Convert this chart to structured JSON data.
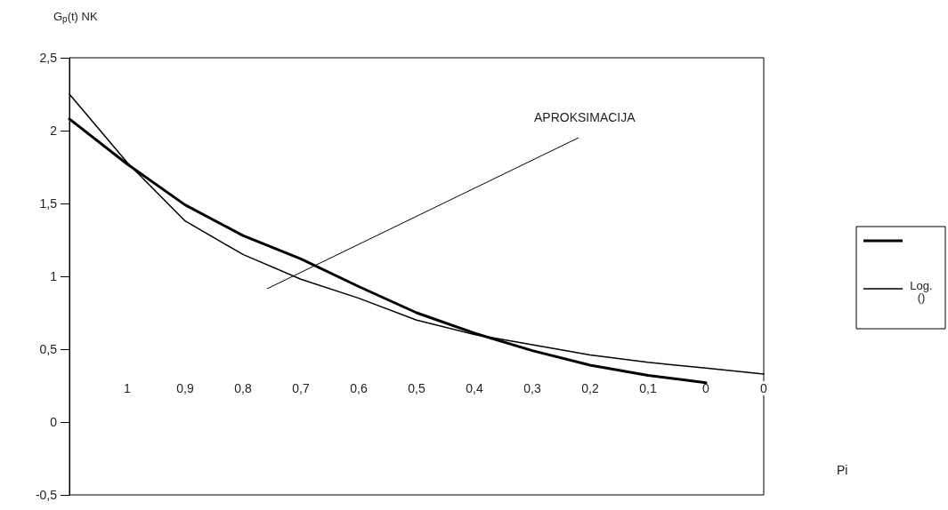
{
  "chart_data": {
    "type": "line",
    "ylabel": "G$_{p}$(t) NK",
    "categories": [
      null,
      "1",
      "0,9",
      "0,8",
      "0,7",
      "0,6",
      "0,5",
      "0,4",
      "0,3",
      "0,2",
      "0,1",
      "0",
      "0"
    ],
    "series": [
      {
        "color": "#000000",
        "values": [
          2.08,
          1.77,
          1.49,
          1.28,
          1.12,
          0.93,
          0.75,
          0.61,
          0.49,
          0.39,
          0.32,
          0.27,
          null
        ]
      },
      {
        "name": "Log. ()",
        "color": "#000000",
        "values": [
          2.25,
          1.78,
          1.38,
          1.15,
          0.98,
          0.85,
          0.7,
          0.6,
          0.53,
          0.46,
          0.41,
          0.37,
          0.33
        ]
      }
    ],
    "ylim": [
      -0.5,
      2.5
    ],
    "yticks": [
      {
        "value": -0.5,
        "label": "-0,5"
      },
      0,
      {
        "value": 0.5,
        "label": "0,5"
      },
      1,
      {
        "value": 1.5,
        "label": "1,5"
      },
      2,
      {
        "value": 2.5,
        "label": "2,5"
      }
    ],
    "annotations": [
      "APROKSIMACIJA",
      "Pi"
    ],
    "grid": false,
    "legend": "right",
    "marker": "none",
    "line_style": "solid"
  }
}
